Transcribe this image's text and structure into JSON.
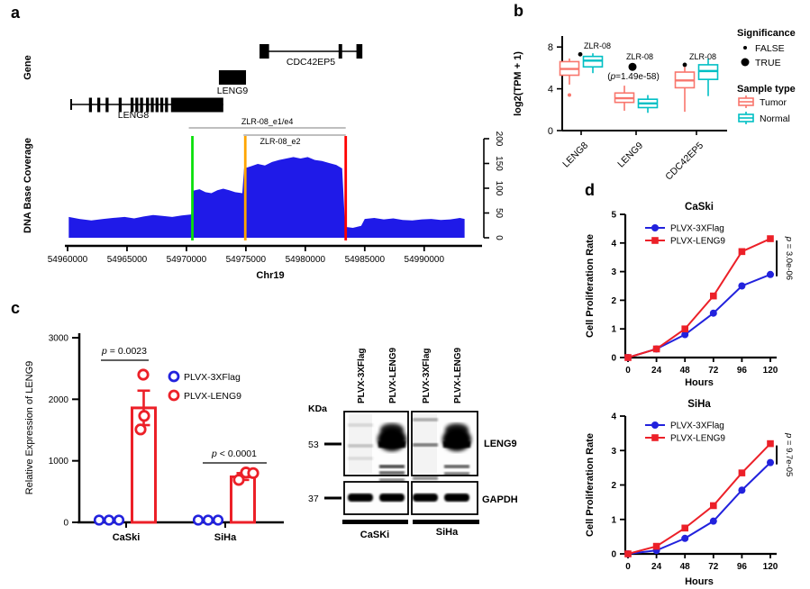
{
  "panel_labels": {
    "a": "a",
    "b": "b",
    "c": "c",
    "d": "d"
  },
  "colors": {
    "coverage_blue": "#1f1ae8",
    "flag_blue": "#2222dd",
    "leng9_red": "#ec2028",
    "tumor": "#F8766D",
    "normal": "#00BFC4",
    "marker_green": "#0ae00a",
    "marker_orange": "#ffa500",
    "marker_red": "#ff0000",
    "annotation_gray": "#999999"
  },
  "chart_data": [
    {
      "id": "dna_coverage",
      "type": "area",
      "panel": "a",
      "xlabel": "Chr19",
      "ylabel": "DNA Base Coverage",
      "gene_track_label": "Gene",
      "x_ticks": [
        54960000,
        54965000,
        54970000,
        54975000,
        54980000,
        54985000,
        54990000
      ],
      "y_ticks": [
        0,
        50,
        100,
        150,
        200
      ],
      "ylim": [
        0,
        200
      ],
      "x": [
        54960100,
        54961000,
        54962000,
        54963000,
        54963800,
        54964800,
        54965600,
        54966400,
        54967200,
        54968000,
        54968800,
        54969600,
        54970400,
        54970550,
        54971100,
        54971600,
        54972100,
        54972600,
        54973100,
        54973600,
        54974100,
        54974700,
        54974850,
        54975400,
        54976000,
        54976600,
        54977200,
        54977800,
        54978400,
        54979000,
        54979600,
        54980200,
        54980800,
        54981400,
        54982000,
        54982600,
        54983100,
        54983350,
        54984000,
        54984700,
        54985000,
        54985800,
        54986600,
        54987400,
        54988200,
        54989000,
        54989800,
        54990600,
        54991400,
        54992200,
        54993000,
        54993400
      ],
      "y": [
        42,
        38,
        35,
        38,
        40,
        42,
        39,
        43,
        46,
        44,
        42,
        45,
        47,
        95,
        98,
        92,
        90,
        96,
        99,
        96,
        92,
        90,
        140,
        144,
        149,
        146,
        153,
        157,
        160,
        163,
        160,
        163,
        157,
        155,
        151,
        147,
        140,
        22,
        20,
        24,
        38,
        40,
        37,
        39,
        36,
        35,
        37,
        38,
        36,
        37,
        40,
        38
      ],
      "genes": [
        {
          "name": "LENG8",
          "line": [
            54960300,
            54973100
          ],
          "start_cap": true,
          "exons": [
            [
              54961800,
              54962050
            ],
            [
              54962500,
              54962750
            ],
            [
              54963200,
              54963450
            ],
            [
              54964300,
              54964550
            ],
            [
              54965300,
              54965550
            ],
            [
              54965700,
              54965950
            ],
            [
              54966100,
              54966350
            ],
            [
              54966600,
              54966850
            ],
            [
              54967000,
              54967250
            ],
            [
              54967400,
              54967650
            ],
            [
              54967800,
              54968050
            ],
            [
              54968200,
              54968450
            ],
            [
              54968700,
              54973100
            ]
          ]
        },
        {
          "name": "LENG9",
          "exons": [
            [
              54972730,
              54975010
            ]
          ]
        },
        {
          "name": "CDC42EP5",
          "line": [
            54976400,
            54984600
          ],
          "exons": [
            [
              54976150,
              54976950
            ],
            [
              54982800,
              54983100
            ],
            [
              54984300,
              54984800
            ]
          ]
        }
      ],
      "transcript_annotations": [
        {
          "label": "ZLR-08_e1/e4",
          "span": [
            54970200,
            54983400
          ]
        },
        {
          "label": "ZLR-08_e2",
          "span": [
            54974800,
            54983400
          ]
        }
      ],
      "marker_lines": [
        {
          "color": "#0ae00a",
          "x": 54970500
        },
        {
          "color": "#ffa500",
          "x": 54974950
        },
        {
          "color": "#ff0000",
          "x": 54983400
        }
      ]
    },
    {
      "id": "tcga_expression_boxplot",
      "type": "box",
      "panel": "b",
      "ylabel": "log2(TPM + 1)",
      "y_ticks": [
        0,
        4,
        8
      ],
      "ylim": [
        0,
        8.6
      ],
      "categories": [
        "LENG8",
        "LENG9",
        "CDC42EP5"
      ],
      "series": [
        {
          "name": "Tumor",
          "color": "#F8766D",
          "boxes": [
            {
              "whislo": 4.4,
              "q1": 5.3,
              "med": 5.9,
              "q3": 6.6,
              "whishi": 6.9,
              "outliers": [
                3.4
              ]
            },
            {
              "whislo": 1.9,
              "q1": 2.7,
              "med": 3.1,
              "q3": 3.6,
              "whishi": 4.3,
              "outliers": []
            },
            {
              "whislo": 1.8,
              "q1": 4.1,
              "med": 4.8,
              "q3": 5.6,
              "whishi": 6.1,
              "outliers": []
            }
          ]
        },
        {
          "name": "Normal",
          "color": "#00BFC4",
          "boxes": [
            {
              "whislo": 5.5,
              "q1": 6.1,
              "med": 6.7,
              "q3": 7.1,
              "whishi": 7.4,
              "outliers": []
            },
            {
              "whislo": 1.7,
              "q1": 2.2,
              "med": 2.6,
              "q3": 3.0,
              "whishi": 3.4,
              "outliers": []
            },
            {
              "whislo": 3.3,
              "q1": 4.9,
              "med": 5.7,
              "q3": 6.3,
              "whishi": 6.9,
              "outliers": []
            }
          ]
        }
      ],
      "annotations": [
        {
          "category": "LENG8",
          "label": "ZLR-08",
          "significant": false,
          "dot_y": 7.3
        },
        {
          "category": "LENG9",
          "label": "ZLR-08",
          "significant": true,
          "dot_y": 6.1,
          "sub_label": "(p=1.49e-58)"
        },
        {
          "category": "CDC42EP5",
          "label": "ZLR-08",
          "significant": false,
          "dot_y": 6.3
        }
      ],
      "legend": {
        "significance_title": "Significance",
        "significance_items": [
          {
            "label": "FALSE",
            "size": "small"
          },
          {
            "label": "TRUE",
            "size": "large"
          }
        ],
        "sample_title": "Sample type",
        "sample_items": [
          {
            "label": "Tumor",
            "color": "#F8766D"
          },
          {
            "label": "Normal",
            "color": "#00BFC4"
          }
        ]
      }
    },
    {
      "id": "qpcr_relative_expression",
      "type": "bar",
      "panel": "c",
      "ylabel": "Relative Expression of LENG9",
      "y_ticks": [
        0,
        1000,
        2000,
        3000
      ],
      "ylim": [
        0,
        3000
      ],
      "categories": [
        "CaSki",
        "SiHa"
      ],
      "series": [
        {
          "name": "PLVX-3XFlag",
          "color": "#2222dd",
          "marker": "open-circle",
          "bars": [
            0,
            0
          ],
          "points": [
            [
              3,
              3,
              3
            ],
            [
              3,
              3,
              3
            ]
          ]
        },
        {
          "name": "PLVX-LENG9",
          "color": "#ec2028",
          "marker": "open-circle",
          "bars": [
            1860,
            740
          ],
          "errors": [
            [
              1580,
              2140
            ],
            [
              690,
              800
            ]
          ],
          "points": [
            [
              2400,
              1730,
              1510
            ],
            [
              690,
              810,
              800
            ]
          ]
        }
      ],
      "p_values": [
        {
          "category": "CaSki",
          "text": "p = 0.0023"
        },
        {
          "category": "SiHa",
          "text": "p < 0.0001"
        }
      ]
    },
    {
      "id": "proliferation_caski",
      "type": "line",
      "panel": "d",
      "title": "CaSki",
      "xlabel": "Hours",
      "ylabel": "Cell Proliferation Rate",
      "x": [
        0,
        24,
        48,
        72,
        96,
        120
      ],
      "y_ticks": [
        0,
        1,
        2,
        3,
        4,
        5
      ],
      "ylim": [
        0,
        5
      ],
      "series": [
        {
          "name": "PLVX-3XFlag",
          "color": "#2222dd",
          "marker": "circle",
          "values": [
            0,
            0.3,
            0.8,
            1.55,
            2.5,
            2.9
          ]
        },
        {
          "name": "PLVX-LENG9",
          "color": "#ec2028",
          "marker": "square",
          "values": [
            0,
            0.3,
            1.0,
            2.15,
            3.7,
            4.15
          ]
        }
      ],
      "p_value": "p = 3.0e-06"
    },
    {
      "id": "proliferation_siha",
      "type": "line",
      "panel": "d",
      "title": "SiHa",
      "xlabel": "Hours",
      "ylabel": "Cell Proliferation Rate",
      "x": [
        0,
        24,
        48,
        72,
        96,
        120
      ],
      "y_ticks": [
        0,
        1,
        2,
        3,
        4
      ],
      "ylim": [
        0,
        4
      ],
      "series": [
        {
          "name": "PLVX-3XFlag",
          "color": "#2222dd",
          "marker": "circle",
          "values": [
            0,
            0.1,
            0.45,
            0.95,
            1.85,
            2.65
          ]
        },
        {
          "name": "PLVX-LENG9",
          "color": "#ec2028",
          "marker": "square",
          "values": [
            0,
            0.22,
            0.75,
            1.4,
            2.35,
            3.2
          ]
        }
      ],
      "p_value": "p = 9.7e-05"
    }
  ],
  "western_blot": {
    "kda_label": "KDa",
    "markers": [
      {
        "kda": "53",
        "row": "LENG9"
      },
      {
        "kda": "37",
        "row": "GAPDH"
      }
    ],
    "lane_labels": [
      "PLVX-3XFlag",
      "PLVX-LENG9",
      "PLVX-3XFlag",
      "PLVX-LENG9"
    ],
    "band_labels": {
      "top": "LENG9",
      "bottom": "GAPDH"
    },
    "group_labels": [
      "CaSKi",
      "SiHa"
    ],
    "leng9_lanes": [
      {
        "blob": false,
        "bands": [
          [
            13,
            0.12
          ],
          [
            36,
            0.2
          ],
          [
            50,
            0.1
          ]
        ]
      },
      {
        "blob": true,
        "bands": [
          [
            59,
            0.7
          ],
          [
            66,
            0.6
          ],
          [
            74,
            0.45
          ]
        ]
      },
      {
        "blob": false,
        "bands": [
          [
            7,
            0.3
          ],
          [
            35,
            0.5
          ],
          [
            72,
            0.45
          ]
        ]
      },
      {
        "blob": true,
        "bands": [
          [
            59,
            0.6
          ],
          [
            67,
            0.5
          ]
        ]
      }
    ]
  }
}
